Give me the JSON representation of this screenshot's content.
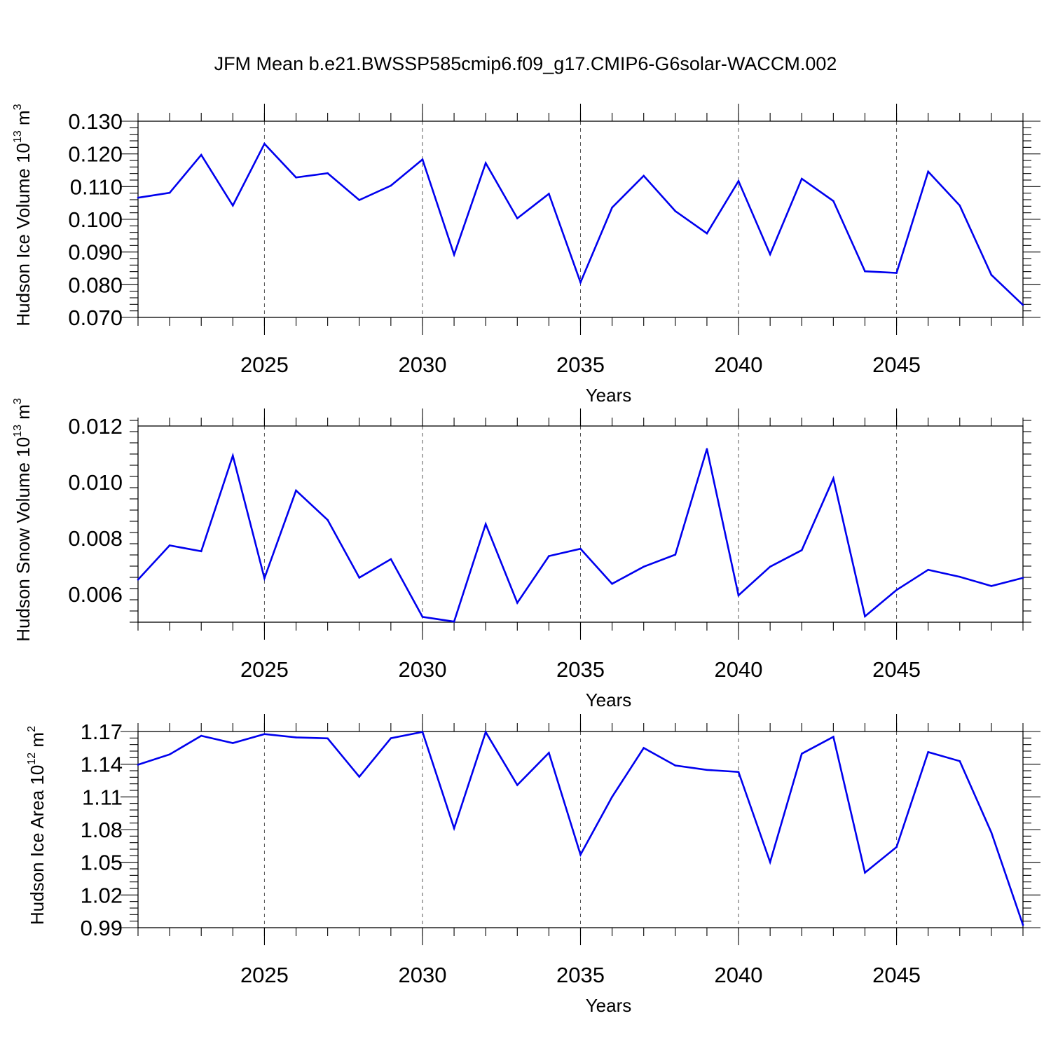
{
  "title": "JFM Mean b.e21.BWSSP585cmip6.f09_g17.CMIP6-G6solar-WACCM.002",
  "line_color": "#0000ee",
  "chart_data": [
    {
      "type": "line",
      "xlabel": "Years",
      "ylabel": "Hudson Ice Volume 10",
      "ylabel_exp": "13",
      "ylabel_unit": " m",
      "ylabel_unit_exp": "3",
      "xlim": [
        2021,
        2049
      ],
      "ylim": [
        0.07,
        0.13
      ],
      "x_ticks": [
        "2025",
        "2030",
        "2035",
        "2040",
        "2045"
      ],
      "y_ticks": [
        "0.070",
        "0.080",
        "0.090",
        "0.100",
        "0.110",
        "0.120",
        "0.130"
      ],
      "x": [
        2021,
        2022,
        2023,
        2024,
        2025,
        2026,
        2027,
        2028,
        2029,
        2030,
        2031,
        2032,
        2033,
        2034,
        2035,
        2036,
        2037,
        2038,
        2039,
        2040,
        2041,
        2042,
        2043,
        2044,
        2045,
        2046,
        2047,
        2048,
        2049
      ],
      "values": [
        0.1066,
        0.1081,
        0.1197,
        0.1042,
        0.1231,
        0.1128,
        0.1141,
        0.1059,
        0.1103,
        0.1183,
        0.0892,
        0.1172,
        0.1003,
        0.1078,
        0.0807,
        0.1036,
        0.1133,
        0.1025,
        0.0957,
        0.1117,
        0.0893,
        0.1124,
        0.1056,
        0.0841,
        0.0836,
        0.1146,
        0.1042,
        0.083,
        0.0738
      ]
    },
    {
      "type": "line",
      "xlabel": "Years",
      "ylabel": "Hudson Snow Volume 10",
      "ylabel_exp": "13",
      "ylabel_unit": " m",
      "ylabel_unit_exp": "3",
      "xlim": [
        2021,
        2049
      ],
      "ylim": [
        0.005,
        0.012
      ],
      "x_ticks": [
        "2025",
        "2030",
        "2035",
        "2040",
        "2045"
      ],
      "y_ticks": [
        "0.006",
        "0.008",
        "0.010",
        "0.012"
      ],
      "x": [
        2021,
        2022,
        2023,
        2024,
        2025,
        2026,
        2027,
        2028,
        2029,
        2030,
        2031,
        2032,
        2033,
        2034,
        2035,
        2036,
        2037,
        2038,
        2039,
        2040,
        2041,
        2042,
        2043,
        2044,
        2045,
        2046,
        2047,
        2048,
        2049
      ],
      "values": [
        0.00652,
        0.00774,
        0.00753,
        0.01094,
        0.00657,
        0.0097,
        0.00865,
        0.00659,
        0.00725,
        0.00519,
        0.00502,
        0.0085,
        0.00569,
        0.00736,
        0.00762,
        0.00637,
        0.00698,
        0.00741,
        0.01118,
        0.00596,
        0.00698,
        0.00757,
        0.01013,
        0.00521,
        0.00615,
        0.00687,
        0.00662,
        0.00629,
        0.00658
      ]
    },
    {
      "type": "line",
      "xlabel": "Years",
      "ylabel": "Hudson Ice Area 10",
      "ylabel_exp": "12",
      "ylabel_unit": " m",
      "ylabel_unit_exp": "2",
      "xlim": [
        2021,
        2049
      ],
      "ylim": [
        0.99,
        1.17
      ],
      "x_ticks": [
        "2025",
        "2030",
        "2035",
        "2040",
        "2045"
      ],
      "y_ticks": [
        "0.99",
        "1.02",
        "1.05",
        "1.08",
        "1.11",
        "1.14",
        "1.17"
      ],
      "x": [
        2021,
        2022,
        2023,
        2024,
        2025,
        2026,
        2027,
        2028,
        2029,
        2030,
        2031,
        2032,
        2033,
        2034,
        2035,
        2036,
        2037,
        2038,
        2039,
        2040,
        2041,
        2042,
        2043,
        2044,
        2045,
        2046,
        2047,
        2048,
        2049
      ],
      "values": [
        1.1395,
        1.149,
        1.1661,
        1.1594,
        1.1676,
        1.1646,
        1.1637,
        1.1285,
        1.1638,
        1.1696,
        1.0812,
        1.1694,
        1.1209,
        1.1504,
        1.057,
        1.11,
        1.1549,
        1.1388,
        1.1348,
        1.1329,
        1.0502,
        1.1496,
        1.1651,
        1.0405,
        1.064,
        1.1511,
        1.1428,
        1.0773,
        0.9925
      ]
    }
  ]
}
